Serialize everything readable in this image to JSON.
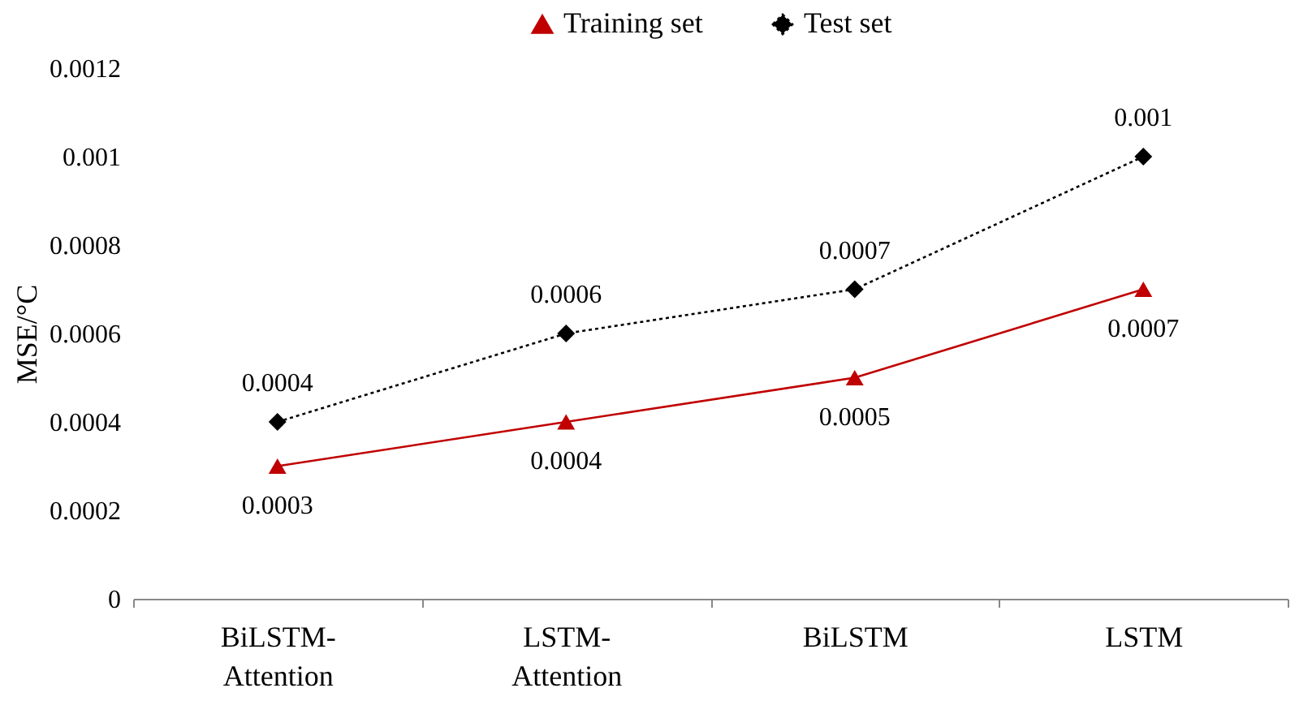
{
  "chart_data": {
    "type": "line",
    "ylabel": "MSE/°C",
    "categories": [
      "BiLSTM-Attention",
      "LSTM-Attention",
      "BiLSTM",
      "LSTM"
    ],
    "series": [
      {
        "name": "Training set",
        "color": "#c00000",
        "marker": "triangle",
        "line_style": "solid",
        "values": [
          0.0003,
          0.0004,
          0.0005,
          0.0007
        ]
      },
      {
        "name": "Test set",
        "color": "#000000",
        "marker": "diamond",
        "line_style": "dotted",
        "values": [
          0.0004,
          0.0006,
          0.0007,
          0.001
        ]
      }
    ],
    "ylim": [
      0,
      0.0012
    ],
    "yticks": [
      0,
      0.0002,
      0.0004,
      0.0006,
      0.0008,
      0.001,
      0.0012
    ],
    "grid": false,
    "legend": "top",
    "data_labels": true
  }
}
